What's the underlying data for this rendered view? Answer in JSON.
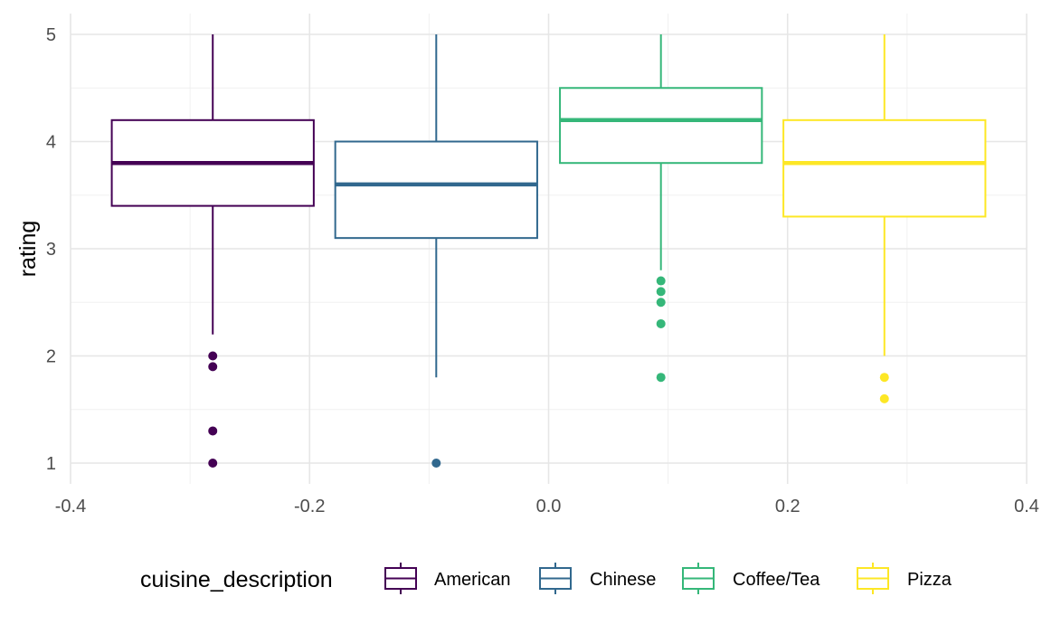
{
  "chart_data": {
    "type": "boxplot",
    "xlabel": "",
    "ylabel": "rating",
    "xlim": [
      -0.4,
      0.4
    ],
    "ylim": [
      1,
      5
    ],
    "x_ticks": [
      -0.4,
      -0.2,
      0.0,
      0.2,
      0.4
    ],
    "x_tick_labels": [
      "-0.4",
      "-0.2",
      "0.0",
      "0.2",
      "0.4"
    ],
    "y_ticks": [
      1,
      2,
      3,
      4,
      5
    ],
    "y_tick_labels": [
      "1",
      "2",
      "3",
      "4",
      "5"
    ],
    "grid": true,
    "theme": "minimal",
    "legend": {
      "title": "cuisine_description",
      "placement": "bottom"
    },
    "series": [
      {
        "name": "American",
        "color": "#440154",
        "x_center": -0.281,
        "box_width": 0.169,
        "whisker_low": 2.2,
        "q1": 3.4,
        "median": 3.8,
        "q3": 4.2,
        "whisker_high": 5.0,
        "outliers": [
          2.0,
          1.9,
          1.3,
          1.0
        ]
      },
      {
        "name": "Chinese",
        "color": "#31688E",
        "x_center": -0.094,
        "box_width": 0.169,
        "whisker_low": 1.8,
        "q1": 3.1,
        "median": 3.6,
        "q3": 4.0,
        "whisker_high": 5.0,
        "outliers": [
          1.0
        ]
      },
      {
        "name": "Coffee/Tea",
        "color": "#35B779",
        "x_center": 0.094,
        "box_width": 0.169,
        "whisker_low": 2.8,
        "q1": 3.8,
        "median": 4.2,
        "q3": 4.5,
        "whisker_high": 5.0,
        "outliers": [
          2.7,
          2.6,
          2.5,
          2.3,
          1.8
        ]
      },
      {
        "name": "Pizza",
        "color": "#FDE725",
        "x_center": 0.281,
        "box_width": 0.169,
        "whisker_low": 2.0,
        "q1": 3.3,
        "median": 3.8,
        "q3": 4.2,
        "whisker_high": 5.0,
        "outliers": [
          1.8,
          1.6
        ]
      }
    ]
  }
}
